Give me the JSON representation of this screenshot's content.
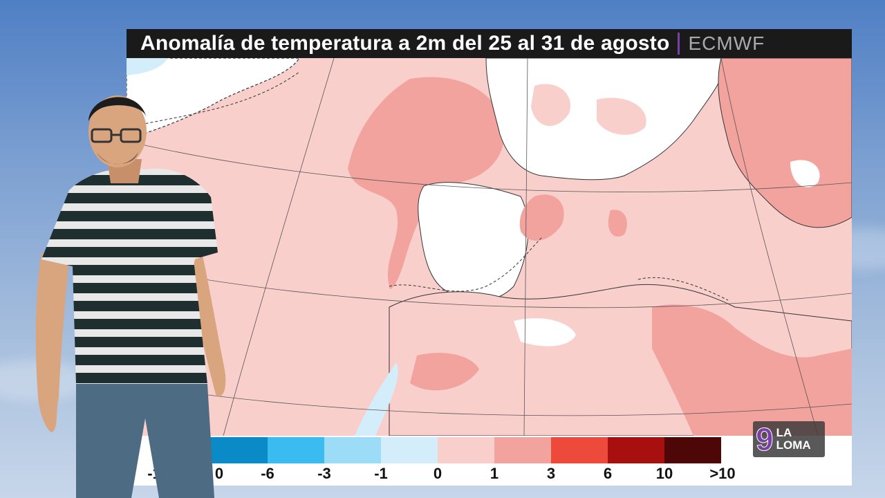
{
  "title": "Anomalía de temperatura a 2m del 25 al 31 de agosto",
  "source": "ECMWF",
  "legend": {
    "ticks": [
      "-1",
      "0",
      "-6",
      "-3",
      "-1",
      "0",
      "1",
      "3",
      "6",
      "10",
      ">10"
    ],
    "colors": [
      "#1f6fa8",
      "#0a8ac6",
      "#3bbcf0",
      "#9ddcf7",
      "#d3eefa",
      "#f9cfcc",
      "#f3a39d",
      "#ee4a3b",
      "#a80f0f",
      "#4e0707"
    ]
  },
  "logo": {
    "number": "9",
    "line1": "LA",
    "line2": "LOMA"
  },
  "map_colors": {
    "ocean_anomaly": "#f9cfcc",
    "warm_anomaly": "#f3a39d",
    "neutral": "#ffffff",
    "cool_anomaly": "#d3eefa"
  }
}
